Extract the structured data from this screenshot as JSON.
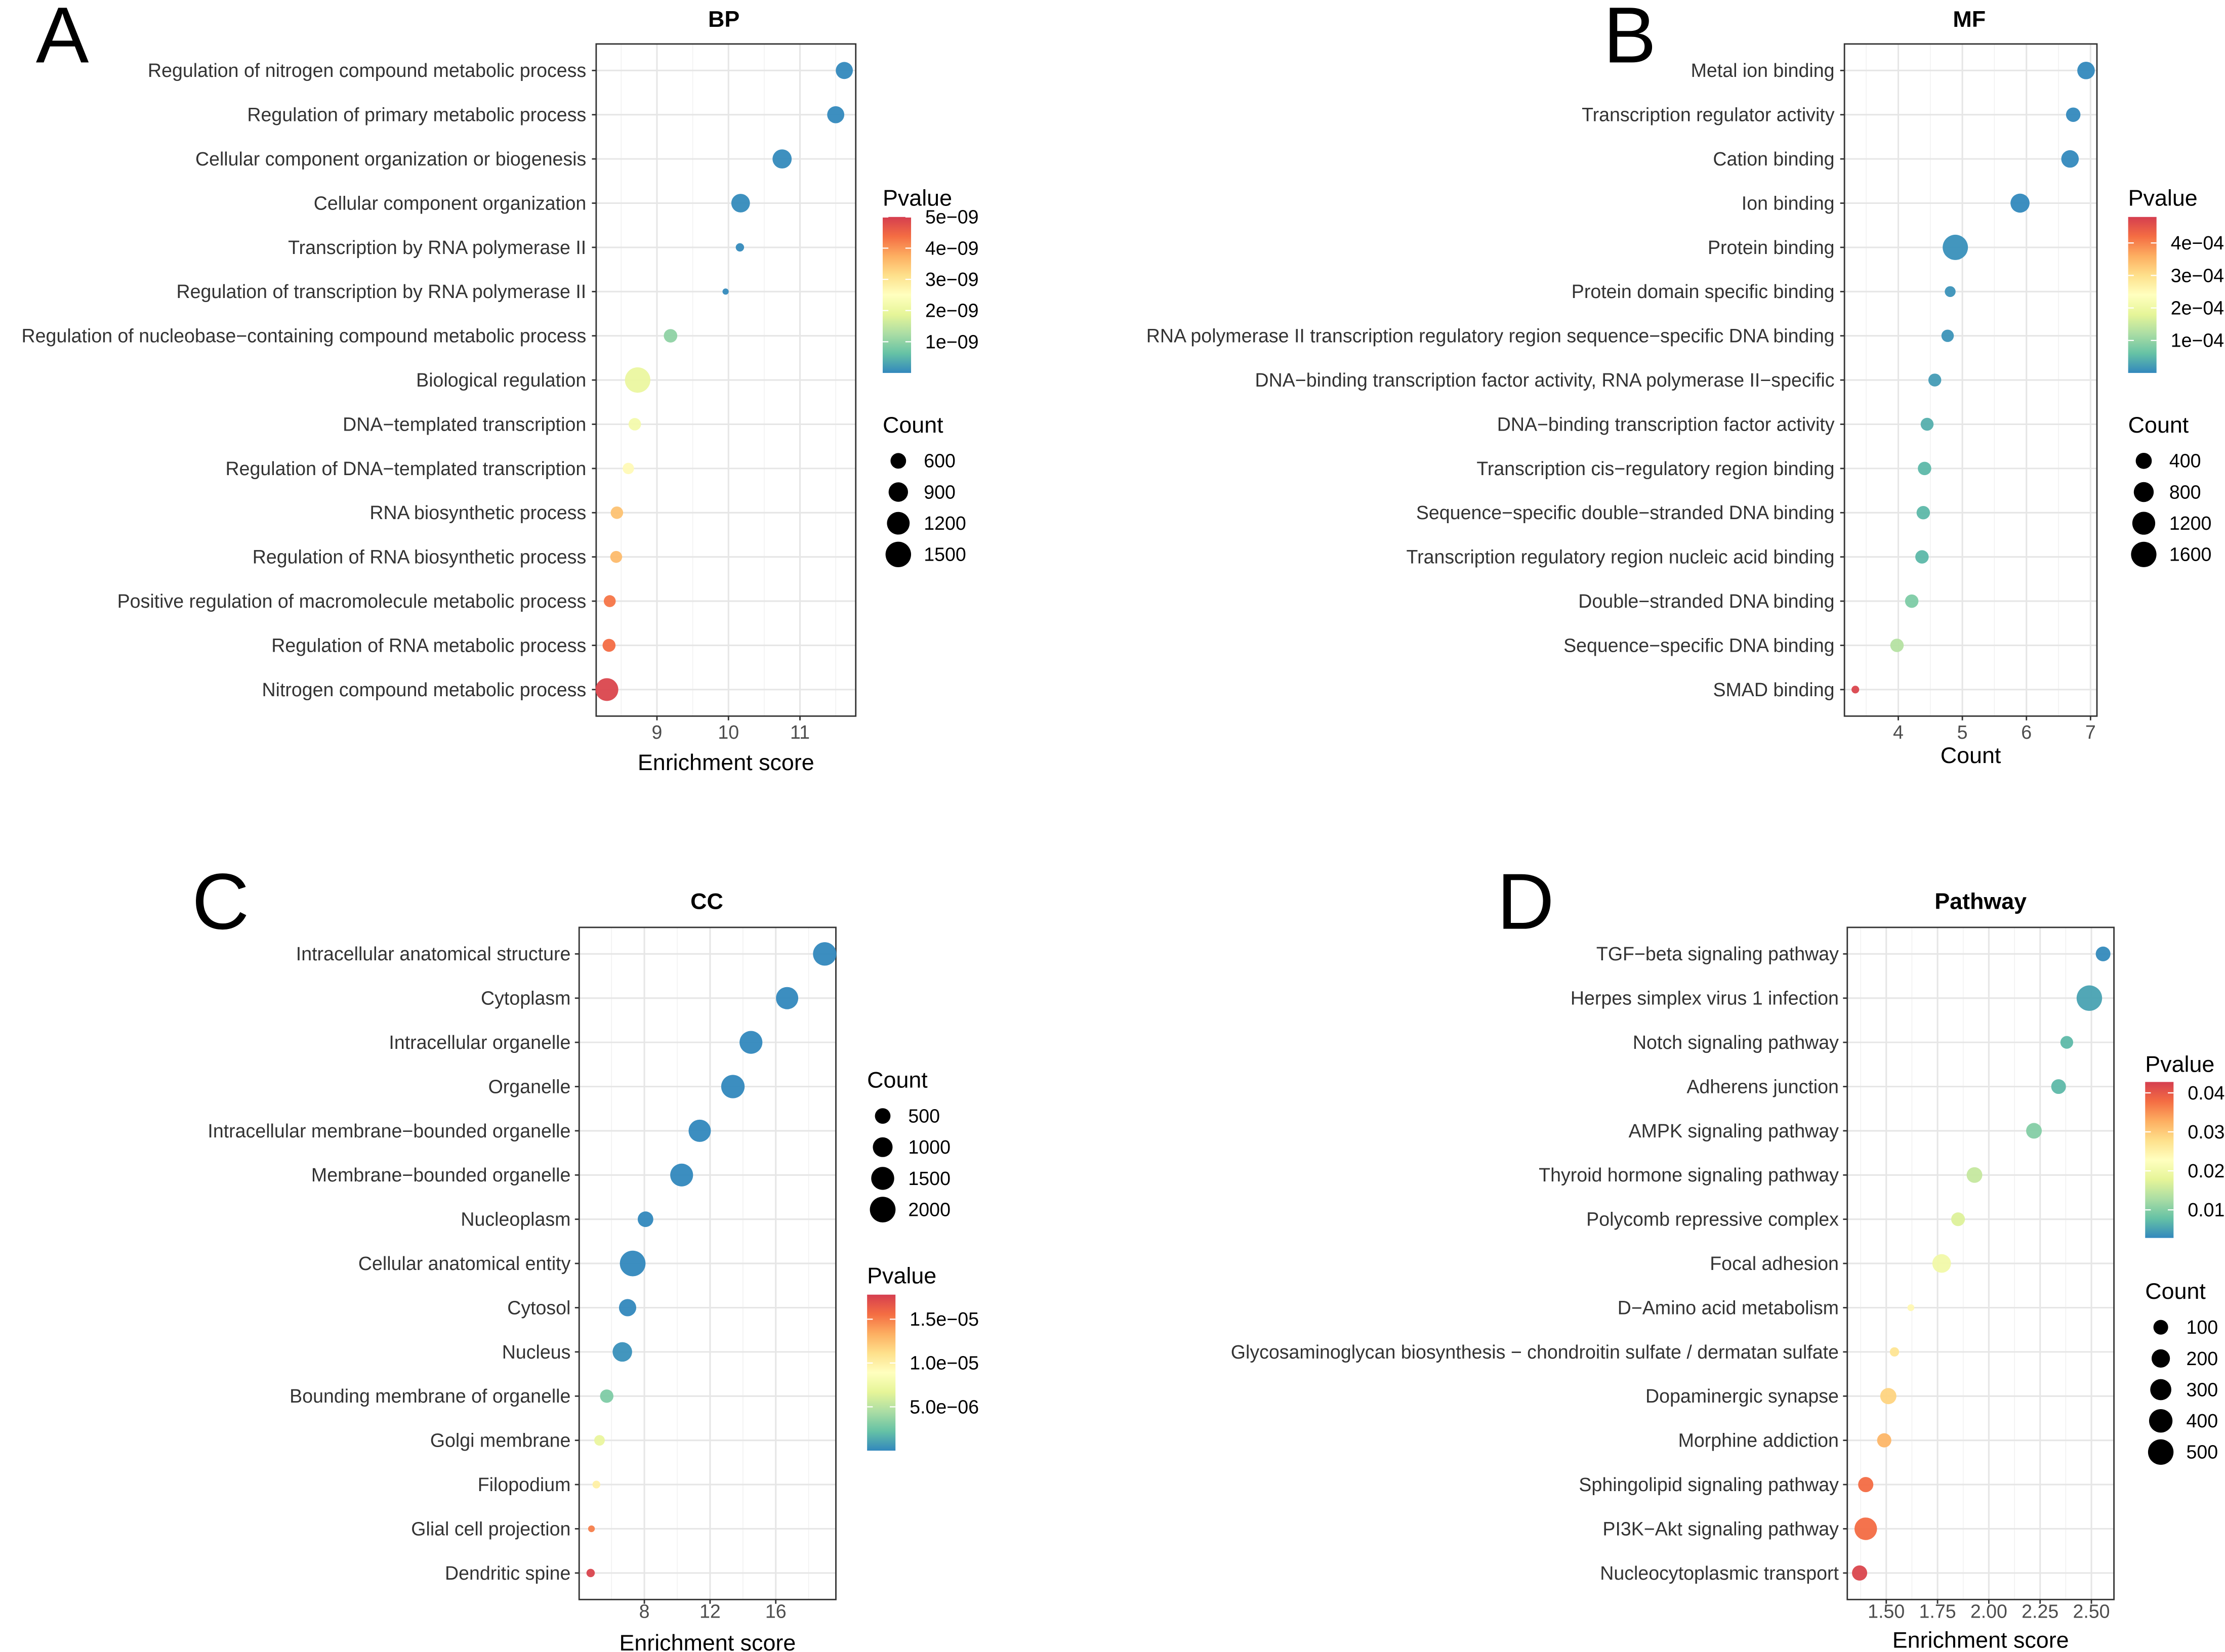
{
  "chart_data": [
    {
      "type": "scatter",
      "panel_letter": "A",
      "title": "BP",
      "xlabel": "Enrichment score",
      "xlim": [
        8.15,
        11.78
      ],
      "xticks": [
        9,
        10,
        11
      ],
      "xtick_labels": [
        "9",
        "10",
        "11"
      ],
      "minor_xticks": [
        8.5,
        9.5,
        10.5,
        11.5
      ],
      "labels": [
        "Regulation of nitrogen compound metabolic process",
        "Regulation of primary metabolic process",
        "Cellular component organization or biogenesis",
        "Cellular component organization",
        "Transcription by RNA polymerase II",
        "Regulation of transcription by RNA polymerase II",
        "Regulation of nucleobase−containing compound metabolic process",
        "Biological regulation",
        "DNA−templated transcription",
        "Regulation of DNA−templated transcription",
        "RNA biosynthetic process",
        "Regulation of RNA biosynthetic process",
        "Positive regulation of macromolecule metabolic process",
        "Regulation of RNA metabolic process",
        "Nitrogen compound metabolic process"
      ],
      "x": [
        11.62,
        11.5,
        10.75,
        10.17,
        10.16,
        9.96,
        9.19,
        8.73,
        8.69,
        8.6,
        8.44,
        8.43,
        8.34,
        8.33,
        8.3
      ],
      "count": [
        711,
        711,
        876,
        833,
        198,
        122,
        461,
        1490,
        400,
        342,
        400,
        370,
        370,
        430,
        1212
      ],
      "pvalue": [
        1e-11,
        1e-11,
        2e-11,
        3e-11,
        2e-11,
        2e-11,
        1e-09,
        2e-09,
        2.2e-09,
        2.6e-09,
        3.5e-09,
        3.6e-09,
        4.3e-09,
        4.4e-09,
        4.9e-09
      ],
      "plim": [
        0,
        5e-09
      ],
      "pvalue_legend": {
        "title": "Pvalue",
        "ticks": [
          5e-09,
          4e-09,
          3e-09,
          2e-09,
          1e-09
        ],
        "tick_labels": [
          "5e−09",
          "4e−09",
          "3e−09",
          "2e−09",
          "1e−09"
        ]
      },
      "count_legend": {
        "title": "Count",
        "values": [
          600,
          900,
          1200,
          1500
        ],
        "labels": [
          "600",
          "900",
          "1200",
          "1500"
        ]
      }
    },
    {
      "type": "scatter",
      "panel_letter": "B",
      "title": "MF",
      "xlabel": "Count",
      "xlim": [
        3.16,
        7.1
      ],
      "xticks": [
        4,
        5,
        6,
        7
      ],
      "xtick_labels": [
        "4",
        "5",
        "6",
        "7"
      ],
      "minor_xticks": [
        3.5,
        4.5,
        5.5,
        6.5
      ],
      "labels": [
        "Metal ion binding",
        "Transcription regulator activity",
        "Cation binding",
        "Ion binding",
        "Protein binding",
        "Protein domain specific binding",
        "RNA polymerase II transcription regulatory region sequence−specific DNA binding",
        "DNA−binding transcription factor activity, RNA polymerase II−specific",
        "DNA−binding transcription factor activity",
        "Transcription cis−regulatory region binding",
        "Sequence−specific double−stranded DNA binding",
        "Transcription regulatory region nucleic acid binding",
        "Double−stranded DNA binding",
        "Sequence−specific DNA binding",
        "SMAD binding"
      ],
      "x": [
        6.93,
        6.73,
        6.68,
        5.9,
        4.89,
        4.81,
        4.77,
        4.57,
        4.45,
        4.41,
        4.39,
        4.37,
        4.21,
        3.98,
        3.33
      ],
      "count": [
        534,
        271,
        534,
        699,
        1576,
        77,
        146,
        174,
        174,
        204,
        204,
        204,
        204,
        204,
        4
      ],
      "pvalue": [
        1e-06,
        1e-06,
        1e-06,
        1e-06,
        8e-06,
        1e-05,
        1.2e-05,
        2e-05,
        4e-05,
        5e-05,
        5e-05,
        5e-05,
        8e-05,
        0.00013,
        0.00047
      ],
      "plim": [
        0,
        0.00048
      ],
      "pvalue_legend": {
        "title": "Pvalue",
        "ticks": [
          0.0004,
          0.0003,
          0.0002,
          0.0001
        ],
        "tick_labels": [
          "4e−04",
          "3e−04",
          "2e−04",
          "1e−04"
        ]
      },
      "count_legend": {
        "title": "Count",
        "values": [
          400,
          800,
          1200,
          1600
        ],
        "labels": [
          "400",
          "800",
          "1200",
          "1600"
        ]
      }
    },
    {
      "type": "scatter",
      "panel_letter": "C",
      "title": "CC",
      "xlabel": "Enrichment score",
      "xlim": [
        4.03,
        19.66
      ],
      "xticks": [
        8,
        12,
        16
      ],
      "xtick_labels": [
        "8",
        "12",
        "16"
      ],
      "minor_xticks": [
        6,
        10,
        14,
        18
      ],
      "labels": [
        "Intracellular anatomical structure",
        "Cytoplasm",
        "Intracellular organelle",
        "Organelle",
        "Intracellular membrane−bounded organelle",
        "Membrane−bounded organelle",
        "Nucleoplasm",
        "Cellular anatomical entity",
        "Cytosol",
        "Nucleus",
        "Bounding membrane of organelle",
        "Golgi membrane",
        "Filopodium",
        "Glial cell projection",
        "Dendritic spine"
      ],
      "x": [
        18.98,
        16.69,
        14.49,
        13.39,
        11.37,
        10.27,
        8.07,
        7.29,
        6.98,
        6.66,
        5.71,
        5.27,
        5.08,
        4.78,
        4.73
      ],
      "count": [
        1580,
        1385,
        1480,
        1580,
        1385,
        1480,
        500,
        2000,
        680,
        965,
        305,
        127,
        26,
        7,
        40
      ],
      "pvalue": [
        1e-09,
        1e-09,
        1e-09,
        1e-09,
        1e-09,
        1e-09,
        1e-09,
        1e-09,
        1e-09,
        3e-07,
        3e-06,
        7e-06,
        1e-05,
        1.5e-05,
        1.75e-05
      ],
      "plim": [
        0,
        1.78e-05
      ],
      "pvalue_legend": {
        "title": "Pvalue",
        "ticks": [
          1.5e-05,
          1e-05,
          5e-06
        ],
        "tick_labels": [
          "1.5e−05",
          "1.0e−05",
          "5.0e−06"
        ]
      },
      "count_legend": {
        "title": "Count",
        "values": [
          500,
          1000,
          1500,
          2000
        ],
        "labels": [
          "500",
          "1000",
          "1500",
          "2000"
        ]
      }
    },
    {
      "type": "scatter",
      "panel_letter": "D",
      "title": "Pathway",
      "xlabel": "Enrichment score",
      "xlim": [
        1.31,
        2.61
      ],
      "xticks": [
        1.5,
        1.75,
        2.0,
        2.25,
        2.5
      ],
      "xtick_labels": [
        "1.50",
        "1.75",
        "2.00",
        "2.25",
        "2.50"
      ],
      "minor_xticks": [
        1.375,
        1.625,
        1.875,
        2.125,
        2.375
      ],
      "labels": [
        "TGF−beta signaling pathway",
        "Herpes simplex virus 1 infection",
        "Notch signaling pathway",
        "Adherens junction",
        "AMPK signaling pathway",
        "Thyroid hormone signaling pathway",
        "Polycomb repressive complex",
        "Focal adhesion",
        "D−Amino acid metabolism",
        "Glycosaminoglycan biosynthesis − chondroitin sulfate / dermatan sulfate",
        "Dopaminergic synapse",
        "Morphine addiction",
        "Sphingolipid signaling pathway",
        "PI3K−Akt signaling pathway",
        "Nucleocytoplasmic transport"
      ],
      "x": [
        2.557,
        2.49,
        2.38,
        2.34,
        2.22,
        1.93,
        1.85,
        1.77,
        1.62,
        1.54,
        1.51,
        1.49,
        1.4,
        1.4,
        1.37
      ],
      "count": [
        100,
        500,
        60,
        100,
        123,
        123,
        78,
        210,
        1,
        14,
        136,
        89,
        111,
        360,
        111
      ],
      "pvalue": [
        0.003,
        0.005,
        0.007,
        0.007,
        0.01,
        0.015,
        0.017,
        0.02,
        0.024,
        0.027,
        0.029,
        0.032,
        0.038,
        0.038,
        0.042
      ],
      "plim": [
        0.0028,
        0.0428
      ],
      "pvalue_legend": {
        "title": "Pvalue",
        "ticks": [
          0.04,
          0.03,
          0.02,
          0.01
        ],
        "tick_labels": [
          "0.04",
          "0.03",
          "0.02",
          "0.01"
        ]
      },
      "count_legend": {
        "title": "Count",
        "values": [
          100,
          200,
          300,
          400,
          500
        ],
        "labels": [
          "100",
          "200",
          "300",
          "400",
          "500"
        ]
      }
    }
  ]
}
